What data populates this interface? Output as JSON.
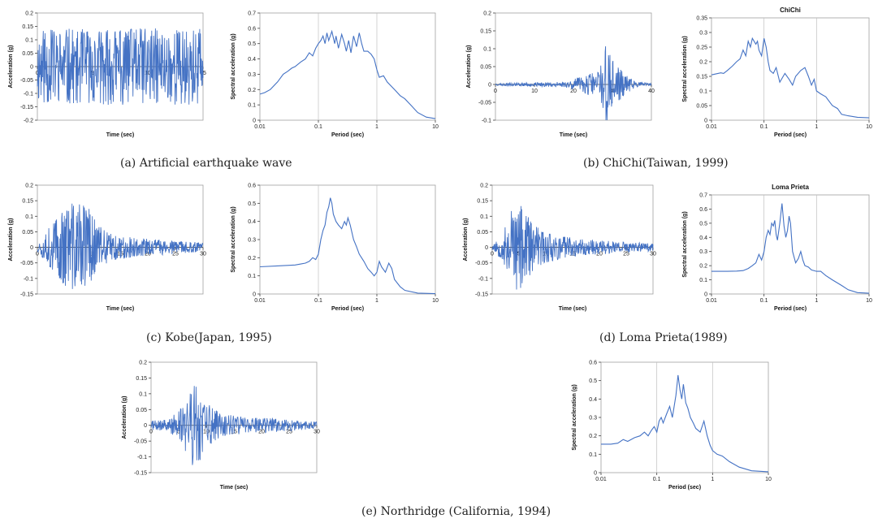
{
  "theme": {
    "line_color": "#4472C4",
    "axis_color": "#404040",
    "grid_color": "#C0C0C0"
  },
  "captions": {
    "a": "(a) Artificial earthquake wave",
    "b": "(b) ChiChi(Taiwan, 1999)",
    "c": "(c) Kobe(Japan, 1995)",
    "d": "(d) Loma Prieta(1989)",
    "e": "(e) Northridge (California, 1994)"
  },
  "chart_data": [
    {
      "id": "a_time",
      "type": "line",
      "title": "",
      "xlabel": "Time (sec)",
      "ylabel": "Acceleration (g)",
      "xlim": [
        0,
        15
      ],
      "ylim": [
        -0.2,
        0.2
      ],
      "xticks": [
        "0",
        "5",
        "10",
        "15"
      ],
      "yticks": [
        "-0.2",
        "-0.15",
        "-0.1",
        "-0.05",
        "0",
        "0.05",
        "0.1",
        "0.15",
        "0.2"
      ],
      "signal": {
        "duration": 15,
        "peak": 0.15,
        "envelope": [
          [
            0,
            0.95
          ],
          [
            15,
            0.95
          ]
        ],
        "seed": 11
      }
    },
    {
      "id": "a_spec",
      "type": "line",
      "xscale": "log",
      "title": "",
      "xlabel": "Period (sec)",
      "ylabel": "Spectral acceleration (g)",
      "xlim": [
        0.01,
        10
      ],
      "ylim": [
        0,
        0.7
      ],
      "xticks": [
        "0.01",
        "0.1",
        "1",
        "10"
      ],
      "yticks": [
        "0",
        "0.1",
        "0.2",
        "0.3",
        "0.4",
        "0.5",
        "0.6",
        "0.7"
      ],
      "grid": "vertical",
      "points": [
        [
          0.01,
          0.17
        ],
        [
          0.012,
          0.18
        ],
        [
          0.015,
          0.2
        ],
        [
          0.02,
          0.25
        ],
        [
          0.025,
          0.3
        ],
        [
          0.03,
          0.32
        ],
        [
          0.035,
          0.34
        ],
        [
          0.04,
          0.35
        ],
        [
          0.05,
          0.38
        ],
        [
          0.06,
          0.4
        ],
        [
          0.07,
          0.44
        ],
        [
          0.08,
          0.42
        ],
        [
          0.09,
          0.47
        ],
        [
          0.1,
          0.5
        ],
        [
          0.11,
          0.52
        ],
        [
          0.12,
          0.55
        ],
        [
          0.13,
          0.5
        ],
        [
          0.14,
          0.57
        ],
        [
          0.15,
          0.52
        ],
        [
          0.17,
          0.58
        ],
        [
          0.19,
          0.5
        ],
        [
          0.2,
          0.55
        ],
        [
          0.22,
          0.47
        ],
        [
          0.25,
          0.56
        ],
        [
          0.28,
          0.5
        ],
        [
          0.3,
          0.45
        ],
        [
          0.33,
          0.52
        ],
        [
          0.36,
          0.44
        ],
        [
          0.4,
          0.55
        ],
        [
          0.45,
          0.48
        ],
        [
          0.5,
          0.57
        ],
        [
          0.55,
          0.5
        ],
        [
          0.6,
          0.45
        ],
        [
          0.7,
          0.45
        ],
        [
          0.8,
          0.43
        ],
        [
          0.9,
          0.4
        ],
        [
          1.0,
          0.33
        ],
        [
          1.1,
          0.28
        ],
        [
          1.3,
          0.29
        ],
        [
          1.5,
          0.25
        ],
        [
          2.0,
          0.2
        ],
        [
          2.5,
          0.16
        ],
        [
          3.0,
          0.14
        ],
        [
          4.0,
          0.09
        ],
        [
          5.0,
          0.05
        ],
        [
          7.0,
          0.02
        ],
        [
          10,
          0.01
        ]
      ]
    },
    {
      "id": "b_time",
      "type": "line",
      "title": "",
      "xlabel": "Time (sec)",
      "ylabel": "Acceleration (g)",
      "xlim": [
        0,
        40
      ],
      "ylim": [
        -0.1,
        0.2
      ],
      "xticks": [
        "0",
        "10",
        "20",
        "30",
        "40"
      ],
      "yticks": [
        "-0.1",
        "-0.05",
        "0",
        "0.05",
        "0.1",
        "0.15",
        "0.2"
      ],
      "signal": {
        "duration": 40,
        "peak": 0.15,
        "envelope": [
          [
            0,
            0.02
          ],
          [
            18,
            0.05
          ],
          [
            22,
            0.15
          ],
          [
            26,
            0.25
          ],
          [
            27.5,
            0.4
          ],
          [
            28.5,
            1.0
          ],
          [
            29.5,
            0.5
          ],
          [
            31,
            0.4
          ],
          [
            33,
            0.2
          ],
          [
            36,
            0.05
          ],
          [
            40,
            0.02
          ]
        ],
        "seed": 23
      }
    },
    {
      "id": "b_spec",
      "type": "line",
      "xscale": "log",
      "title": "ChiChi",
      "xlabel": "Period (sec)",
      "ylabel": "Spectral acceleration (g)",
      "xlim": [
        0.01,
        10
      ],
      "ylim": [
        0,
        0.35
      ],
      "xticks": [
        "0.01",
        "0.1",
        "1",
        "10"
      ],
      "yticks": [
        "0",
        "0.05",
        "0.1",
        "0.15",
        "0.2",
        "0.25",
        "0.3",
        "0.35"
      ],
      "grid": "vertical",
      "points": [
        [
          0.01,
          0.155
        ],
        [
          0.012,
          0.158
        ],
        [
          0.015,
          0.162
        ],
        [
          0.017,
          0.16
        ],
        [
          0.02,
          0.17
        ],
        [
          0.025,
          0.185
        ],
        [
          0.03,
          0.2
        ],
        [
          0.035,
          0.21
        ],
        [
          0.04,
          0.24
        ],
        [
          0.045,
          0.22
        ],
        [
          0.05,
          0.27
        ],
        [
          0.055,
          0.25
        ],
        [
          0.06,
          0.28
        ],
        [
          0.07,
          0.26
        ],
        [
          0.075,
          0.27
        ],
        [
          0.08,
          0.24
        ],
        [
          0.09,
          0.22
        ],
        [
          0.1,
          0.28
        ],
        [
          0.11,
          0.25
        ],
        [
          0.12,
          0.2
        ],
        [
          0.13,
          0.17
        ],
        [
          0.15,
          0.16
        ],
        [
          0.17,
          0.18
        ],
        [
          0.2,
          0.13
        ],
        [
          0.25,
          0.16
        ],
        [
          0.3,
          0.14
        ],
        [
          0.35,
          0.12
        ],
        [
          0.4,
          0.15
        ],
        [
          0.5,
          0.17
        ],
        [
          0.6,
          0.18
        ],
        [
          0.7,
          0.15
        ],
        [
          0.8,
          0.12
        ],
        [
          0.9,
          0.14
        ],
        [
          1.0,
          0.1
        ],
        [
          1.2,
          0.09
        ],
        [
          1.5,
          0.08
        ],
        [
          2.0,
          0.05
        ],
        [
          2.5,
          0.04
        ],
        [
          3.0,
          0.02
        ],
        [
          4.0,
          0.015
        ],
        [
          6.0,
          0.01
        ],
        [
          10,
          0.008
        ]
      ]
    },
    {
      "id": "c_time",
      "type": "line",
      "title": "",
      "xlabel": "Time (sec)",
      "ylabel": "Acceleration (g)",
      "xlim": [
        0,
        30
      ],
      "ylim": [
        -0.15,
        0.2
      ],
      "xticks": [
        "0",
        "5",
        "10",
        "15",
        "20",
        "25",
        "30"
      ],
      "yticks": [
        "-0.15",
        "-0.1",
        "-0.05",
        "0",
        "0.05",
        "0.1",
        "0.15",
        "0.2"
      ],
      "signal": {
        "duration": 30,
        "peak": 0.15,
        "envelope": [
          [
            0,
            0.1
          ],
          [
            1.5,
            0.3
          ],
          [
            3,
            0.6
          ],
          [
            5,
            0.85
          ],
          [
            7,
            1.0
          ],
          [
            9,
            0.9
          ],
          [
            11,
            0.5
          ],
          [
            13,
            0.3
          ],
          [
            18,
            0.2
          ],
          [
            30,
            0.1
          ]
        ],
        "seed": 37
      }
    },
    {
      "id": "c_spec",
      "type": "line",
      "xscale": "log",
      "title": "",
      "xlabel": "Period (sec)",
      "ylabel": "Spectral acceleration (g)",
      "xlim": [
        0.01,
        10
      ],
      "ylim": [
        0,
        0.6
      ],
      "xticks": [
        "0.01",
        "0.1",
        "1",
        "10"
      ],
      "yticks": [
        "0",
        "0.1",
        "0.2",
        "0.3",
        "0.4",
        "0.5",
        "0.6"
      ],
      "grid": "vertical",
      "points": [
        [
          0.01,
          0.15
        ],
        [
          0.02,
          0.155
        ],
        [
          0.04,
          0.16
        ],
        [
          0.05,
          0.165
        ],
        [
          0.06,
          0.17
        ],
        [
          0.07,
          0.18
        ],
        [
          0.08,
          0.2
        ],
        [
          0.09,
          0.19
        ],
        [
          0.1,
          0.22
        ],
        [
          0.11,
          0.3
        ],
        [
          0.12,
          0.35
        ],
        [
          0.13,
          0.38
        ],
        [
          0.14,
          0.45
        ],
        [
          0.15,
          0.48
        ],
        [
          0.16,
          0.53
        ],
        [
          0.17,
          0.5
        ],
        [
          0.18,
          0.44
        ],
        [
          0.2,
          0.4
        ],
        [
          0.22,
          0.38
        ],
        [
          0.25,
          0.36
        ],
        [
          0.28,
          0.4
        ],
        [
          0.3,
          0.38
        ],
        [
          0.32,
          0.42
        ],
        [
          0.35,
          0.38
        ],
        [
          0.4,
          0.3
        ],
        [
          0.45,
          0.26
        ],
        [
          0.5,
          0.22
        ],
        [
          0.6,
          0.18
        ],
        [
          0.7,
          0.14
        ],
        [
          0.8,
          0.12
        ],
        [
          0.9,
          0.1
        ],
        [
          1.0,
          0.12
        ],
        [
          1.1,
          0.18
        ],
        [
          1.2,
          0.15
        ],
        [
          1.4,
          0.12
        ],
        [
          1.6,
          0.17
        ],
        [
          1.8,
          0.14
        ],
        [
          2.0,
          0.08
        ],
        [
          2.5,
          0.04
        ],
        [
          3.0,
          0.02
        ],
        [
          5.0,
          0.005
        ],
        [
          10,
          0.002
        ]
      ]
    },
    {
      "id": "d_time",
      "type": "line",
      "title": "",
      "xlabel": "Time (sec)",
      "ylabel": "Acceleration (g)",
      "xlim": [
        0,
        30
      ],
      "ylim": [
        -0.15,
        0.2
      ],
      "xticks": [
        "0",
        "5",
        "10",
        "15",
        "20",
        "25",
        "30"
      ],
      "yticks": [
        "-0.15",
        "-0.1",
        "-0.05",
        "0",
        "0.05",
        "0.1",
        "0.15",
        "0.2"
      ],
      "signal": {
        "duration": 30,
        "peak": 0.15,
        "envelope": [
          [
            0,
            0.05
          ],
          [
            2,
            0.3
          ],
          [
            3.5,
            0.8
          ],
          [
            5,
            1.0
          ],
          [
            6.5,
            0.7
          ],
          [
            8,
            0.45
          ],
          [
            11,
            0.3
          ],
          [
            15,
            0.2
          ],
          [
            20,
            0.15
          ],
          [
            30,
            0.08
          ]
        ],
        "seed": 53
      }
    },
    {
      "id": "d_spec",
      "type": "line",
      "xscale": "log",
      "title": "Loma Prieta",
      "xlabel": "Period (sec)",
      "ylabel": "Spectral acceleration (g)",
      "xlim": [
        0.01,
        10
      ],
      "ylim": [
        0,
        0.7
      ],
      "xticks": [
        "0.01",
        "0.1",
        "1",
        "10"
      ],
      "yticks": [
        "0",
        "0.1",
        "0.2",
        "0.3",
        "0.4",
        "0.5",
        "0.6",
        "0.7"
      ],
      "grid": "vertical",
      "points": [
        [
          0.01,
          0.16
        ],
        [
          0.02,
          0.16
        ],
        [
          0.03,
          0.162
        ],
        [
          0.04,
          0.165
        ],
        [
          0.05,
          0.18
        ],
        [
          0.06,
          0.2
        ],
        [
          0.07,
          0.22
        ],
        [
          0.08,
          0.28
        ],
        [
          0.09,
          0.24
        ],
        [
          0.1,
          0.3
        ],
        [
          0.11,
          0.4
        ],
        [
          0.12,
          0.45
        ],
        [
          0.13,
          0.42
        ],
        [
          0.14,
          0.5
        ],
        [
          0.15,
          0.48
        ],
        [
          0.16,
          0.52
        ],
        [
          0.17,
          0.42
        ],
        [
          0.18,
          0.38
        ],
        [
          0.2,
          0.5
        ],
        [
          0.22,
          0.64
        ],
        [
          0.24,
          0.48
        ],
        [
          0.26,
          0.4
        ],
        [
          0.28,
          0.45
        ],
        [
          0.3,
          0.55
        ],
        [
          0.32,
          0.5
        ],
        [
          0.35,
          0.3
        ],
        [
          0.4,
          0.22
        ],
        [
          0.45,
          0.25
        ],
        [
          0.5,
          0.3
        ],
        [
          0.55,
          0.24
        ],
        [
          0.6,
          0.2
        ],
        [
          0.7,
          0.19
        ],
        [
          0.8,
          0.17
        ],
        [
          1.0,
          0.16
        ],
        [
          1.2,
          0.16
        ],
        [
          1.5,
          0.13
        ],
        [
          2.0,
          0.1
        ],
        [
          3.0,
          0.06
        ],
        [
          4.0,
          0.03
        ],
        [
          6.0,
          0.01
        ],
        [
          10,
          0.005
        ]
      ]
    },
    {
      "id": "e_time",
      "type": "line",
      "title": "",
      "xlabel": "Time (sec)",
      "ylabel": "Acceleration (g)",
      "xlim": [
        0,
        30
      ],
      "ylim": [
        -0.15,
        0.2
      ],
      "xticks": [
        "0",
        "5",
        "10",
        "15",
        "20",
        "25",
        "30"
      ],
      "yticks": [
        "-0.15",
        "-0.1",
        "-0.05",
        "0",
        "0.05",
        "0.1",
        "0.15",
        "0.2"
      ],
      "signal": {
        "duration": 30,
        "peak": 0.15,
        "envelope": [
          [
            0,
            0.1
          ],
          [
            3,
            0.12
          ],
          [
            5,
            0.3
          ],
          [
            7,
            0.7
          ],
          [
            8,
            1.0
          ],
          [
            9,
            0.7
          ],
          [
            10,
            0.5
          ],
          [
            12,
            0.3
          ],
          [
            15,
            0.2
          ],
          [
            30,
            0.08
          ]
        ],
        "seed": 71
      }
    },
    {
      "id": "e_spec",
      "type": "line",
      "xscale": "log",
      "title": "",
      "xlabel": "Period (sec)",
      "ylabel": "Spectral acceleration (g)",
      "xlim": [
        0.01,
        10
      ],
      "ylim": [
        0,
        0.6
      ],
      "xticks": [
        "0.01",
        "0.1",
        "1",
        "10"
      ],
      "yticks": [
        "0",
        "0.1",
        "0.2",
        "0.3",
        "0.4",
        "0.5",
        "0.6"
      ],
      "grid": "vertical",
      "points": [
        [
          0.01,
          0.155
        ],
        [
          0.015,
          0.155
        ],
        [
          0.02,
          0.16
        ],
        [
          0.025,
          0.18
        ],
        [
          0.03,
          0.17
        ],
        [
          0.04,
          0.19
        ],
        [
          0.05,
          0.2
        ],
        [
          0.06,
          0.22
        ],
        [
          0.07,
          0.2
        ],
        [
          0.08,
          0.23
        ],
        [
          0.09,
          0.25
        ],
        [
          0.1,
          0.22
        ],
        [
          0.11,
          0.28
        ],
        [
          0.12,
          0.3
        ],
        [
          0.13,
          0.27
        ],
        [
          0.15,
          0.32
        ],
        [
          0.17,
          0.36
        ],
        [
          0.19,
          0.3
        ],
        [
          0.2,
          0.34
        ],
        [
          0.22,
          0.42
        ],
        [
          0.24,
          0.53
        ],
        [
          0.26,
          0.45
        ],
        [
          0.28,
          0.4
        ],
        [
          0.3,
          0.48
        ],
        [
          0.33,
          0.38
        ],
        [
          0.36,
          0.35
        ],
        [
          0.4,
          0.3
        ],
        [
          0.45,
          0.27
        ],
        [
          0.5,
          0.24
        ],
        [
          0.6,
          0.22
        ],
        [
          0.7,
          0.28
        ],
        [
          0.8,
          0.2
        ],
        [
          0.9,
          0.15
        ],
        [
          1.0,
          0.12
        ],
        [
          1.2,
          0.1
        ],
        [
          1.5,
          0.09
        ],
        [
          2.0,
          0.06
        ],
        [
          3.0,
          0.03
        ],
        [
          5.0,
          0.01
        ],
        [
          10,
          0.005
        ]
      ]
    }
  ]
}
